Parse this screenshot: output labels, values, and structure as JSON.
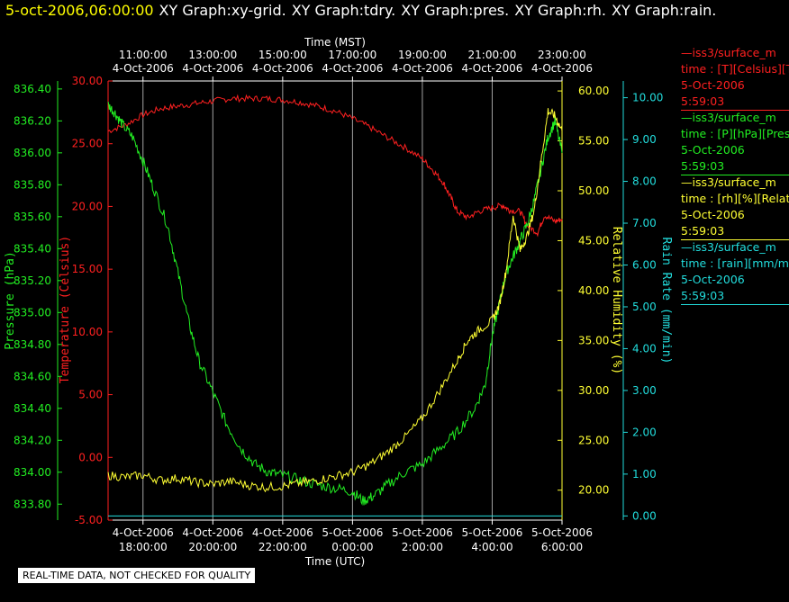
{
  "header": {
    "datetime": "5-oct-2006,06:00:00",
    "graphs": [
      "XY Graph:xy-grid.",
      "XY Graph:tdry.",
      "XY Graph:pres.",
      "XY Graph:rh.",
      "XY Graph:rain."
    ]
  },
  "colors": {
    "background": "#000000",
    "temperature": "#ff2020",
    "pressure": "#22ee22",
    "humidity": "#ffff33",
    "rain": "#22dddd",
    "grid": "#ffffff"
  },
  "legend": [
    {
      "line": "—iss3/surface_m",
      "var": "time : [T][Celsius][T",
      "date": "5-Oct-2006",
      "time": "5:59:03",
      "color": "#ff2020"
    },
    {
      "line": "—iss3/surface_m",
      "var": "time : [P][hPa][Pres",
      "date": "5-Oct-2006",
      "time": "5:59:03",
      "color": "#22ee22"
    },
    {
      "line": "—iss3/surface_m",
      "var": "time : [rh][%][Relativ",
      "date": "5-Oct-2006",
      "time": "5:59:03",
      "color": "#ffff33"
    },
    {
      "line": "—iss3/surface_m",
      "var": "time : [rain][mm/min",
      "date": "5-Oct-2006",
      "time": "5:59:03",
      "color": "#22dddd"
    }
  ],
  "footer_note": "REAL-TIME DATA, NOT CHECKED FOR QUALITY",
  "chart_data": {
    "type": "line",
    "x_top_label": "Time (MST)",
    "x_bottom_label": "Time (UTC)",
    "x_range_utc_hours": [
      17.0,
      30.0
    ],
    "top_ticks": [
      {
        "t": 18,
        "l1": "11:00:00",
        "l2": "4-Oct-2006"
      },
      {
        "t": 20,
        "l1": "13:00:00",
        "l2": "4-Oct-2006"
      },
      {
        "t": 22,
        "l1": "15:00:00",
        "l2": "4-Oct-2006"
      },
      {
        "t": 24,
        "l1": "17:00:00",
        "l2": "4-Oct-2006"
      },
      {
        "t": 26,
        "l1": "19:00:00",
        "l2": "4-Oct-2006"
      },
      {
        "t": 28,
        "l1": "21:00:00",
        "l2": "4-Oct-2006"
      },
      {
        "t": 30,
        "l1": "23:00:00",
        "l2": "4-Oct-2006"
      }
    ],
    "bottom_ticks": [
      {
        "t": 18,
        "l1": "4-Oct-2006",
        "l2": "18:00:00"
      },
      {
        "t": 20,
        "l1": "4-Oct-2006",
        "l2": "20:00:00"
      },
      {
        "t": 22,
        "l1": "4-Oct-2006",
        "l2": "22:00:00"
      },
      {
        "t": 24,
        "l1": "5-Oct-2006",
        "l2": "0:00:00"
      },
      {
        "t": 26,
        "l1": "5-Oct-2006",
        "l2": "2:00:00"
      },
      {
        "t": 28,
        "l1": "5-Oct-2006",
        "l2": "4:00:00"
      },
      {
        "t": 30,
        "l1": "5-Oct-2006",
        "l2": "6:00:00"
      }
    ],
    "axes": {
      "pressure": {
        "label": "Pressure (hPa)",
        "range": [
          833.7,
          836.45
        ],
        "ticks": [
          "833.80",
          "834.00",
          "834.20",
          "834.40",
          "834.60",
          "834.80",
          "835.00",
          "835.20",
          "835.40",
          "835.60",
          "835.80",
          "836.00",
          "836.20",
          "836.40"
        ]
      },
      "temperature": {
        "label": "Temperature (Celsius)",
        "range": [
          -5,
          30
        ],
        "ticks": [
          "-5.00",
          "0.00",
          "5.00",
          "10.00",
          "15.00",
          "20.00",
          "25.00",
          "30.00"
        ]
      },
      "humidity": {
        "label": "Relative Humidity (%)",
        "range": [
          17,
          61
        ],
        "ticks": [
          "20.00",
          "25.00",
          "30.00",
          "35.00",
          "40.00",
          "45.00",
          "50.00",
          "55.00",
          "60.00"
        ]
      },
      "rain": {
        "label": "Rain Rate (mm/min)",
        "range": [
          -0.1,
          10.4
        ],
        "ticks": [
          "0.00",
          "1.00",
          "2.00",
          "3.00",
          "4.00",
          "5.00",
          "6.00",
          "7.00",
          "8.00",
          "9.00",
          "10.00"
        ]
      }
    },
    "series": [
      {
        "name": "iss3/surface_m time : [T][Celsius][T",
        "color": "#ff2020",
        "axis": "temperature",
        "x": [
          17.0,
          17.5,
          18.0,
          18.5,
          19.0,
          19.5,
          20.0,
          20.5,
          21.0,
          21.5,
          22.0,
          22.5,
          23.0,
          23.5,
          24.0,
          24.5,
          25.0,
          25.5,
          26.0,
          26.3,
          26.6,
          26.8,
          27.0,
          27.3,
          27.6,
          28.0,
          28.3,
          28.5,
          28.8,
          29.0,
          29.3,
          29.5,
          29.8,
          30.0
        ],
        "y": [
          26.0,
          26.5,
          27.3,
          27.8,
          28.0,
          28.2,
          28.4,
          28.6,
          28.6,
          28.6,
          28.5,
          28.3,
          28.0,
          27.6,
          27.0,
          26.3,
          25.5,
          24.7,
          23.8,
          22.9,
          21.9,
          20.8,
          19.6,
          19.1,
          19.6,
          19.9,
          20.1,
          19.7,
          19.6,
          18.5,
          17.9,
          19.3,
          18.8,
          19.0
        ]
      },
      {
        "name": "iss3/surface_m time : [P][hPa][Pres",
        "color": "#22ee22",
        "axis": "pressure",
        "x": [
          17.0,
          17.2,
          17.4,
          17.7,
          18.0,
          18.3,
          18.7,
          19.0,
          19.3,
          19.6,
          20.0,
          20.4,
          20.8,
          21.2,
          21.6,
          22.0,
          22.5,
          23.0,
          23.5,
          24.0,
          24.3,
          24.6,
          25.0,
          25.5,
          26.0,
          26.5,
          27.0,
          27.5,
          27.8,
          28.0,
          28.2,
          28.4,
          28.6,
          28.8,
          29.0,
          29.2,
          29.4,
          29.6,
          29.8,
          30.0
        ],
        "y": [
          836.3,
          836.25,
          836.18,
          836.1,
          835.95,
          835.78,
          835.55,
          835.25,
          834.95,
          834.7,
          834.5,
          834.3,
          834.15,
          834.05,
          834.0,
          833.98,
          833.95,
          833.92,
          833.9,
          833.88,
          833.82,
          833.85,
          833.92,
          834.0,
          834.05,
          834.15,
          834.25,
          834.4,
          834.55,
          834.85,
          835.05,
          835.25,
          835.35,
          835.45,
          835.55,
          835.7,
          835.9,
          836.1,
          836.2,
          836.0
        ]
      },
      {
        "name": "iss3/surface_m time : [rh][%][Relativ",
        "color": "#ffff33",
        "axis": "humidity",
        "x": [
          17.0,
          17.5,
          18.0,
          18.5,
          19.0,
          19.5,
          20.0,
          20.5,
          21.0,
          21.5,
          22.0,
          22.5,
          23.0,
          23.5,
          24.0,
          24.5,
          25.0,
          25.5,
          26.0,
          26.5,
          27.0,
          27.3,
          27.6,
          28.0,
          28.2,
          28.4,
          28.6,
          28.8,
          29.0,
          29.2,
          29.4,
          29.6,
          29.8,
          30.0
        ],
        "y": [
          21.5,
          21.3,
          21.5,
          21.0,
          21.2,
          20.8,
          20.6,
          20.9,
          20.5,
          20.3,
          20.4,
          20.7,
          21.0,
          21.4,
          21.8,
          22.6,
          23.8,
          25.3,
          27.2,
          30.0,
          33.0,
          35.0,
          36.0,
          37.0,
          38.5,
          42.0,
          47.5,
          44.0,
          45.5,
          48.0,
          53.0,
          58.0,
          57.5,
          56.0
        ]
      },
      {
        "name": "iss3/surface_m time : [rain][mm/min",
        "color": "#22dddd",
        "axis": "rain",
        "x": [
          17.0,
          30.0
        ],
        "y": [
          0.0,
          0.0
        ]
      }
    ]
  }
}
